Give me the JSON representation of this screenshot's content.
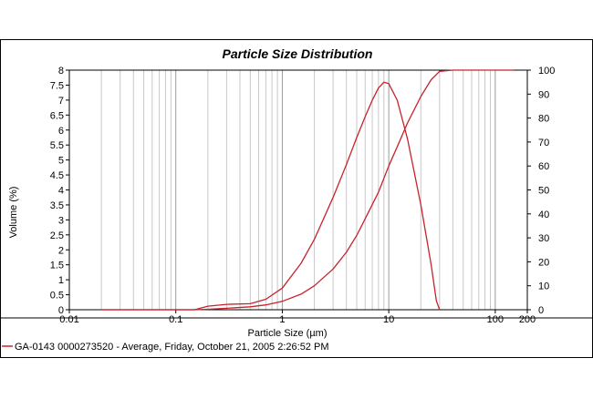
{
  "chart_data": {
    "type": "line",
    "title": "Particle Size Distribution",
    "xlabel": "Particle Size (µm)",
    "ylabel": "Volume (%)",
    "x_scale": "log",
    "xlim": [
      0.01,
      200
    ],
    "ylim": [
      0,
      8
    ],
    "y2lim": [
      0,
      100
    ],
    "x_tick_labels": [
      "0.01",
      "0.1",
      "1",
      "10",
      "100",
      "200"
    ],
    "y_tick_labels": [
      "0",
      "0.5",
      "1",
      "1.5",
      "2",
      "2.5",
      "3",
      "3.5",
      "4",
      "4.5",
      "5",
      "5.5",
      "6",
      "6.5",
      "7",
      "7.5",
      "8"
    ],
    "y2_tick_labels": [
      "0",
      "10",
      "20",
      "30",
      "40",
      "50",
      "60",
      "70",
      "80",
      "90",
      "100"
    ],
    "grid": true,
    "line_color": "#c8232c",
    "legend_position": "bottom",
    "legend_label": "GA-0143 0000273520 - Average, Friday, October 21, 2005 2:26:52 PM",
    "series": [
      {
        "axis": "left",
        "x": [
          0.02,
          0.15,
          0.2,
          0.3,
          0.5,
          0.7,
          1,
          1.5,
          2,
          3,
          4,
          5,
          6,
          7,
          8,
          9,
          10,
          12,
          15,
          20,
          25,
          28,
          30
        ],
        "y": [
          0,
          0,
          0.12,
          0.18,
          0.2,
          0.35,
          0.72,
          1.55,
          2.35,
          3.75,
          4.85,
          5.75,
          6.45,
          7.0,
          7.4,
          7.6,
          7.55,
          7.0,
          5.7,
          3.5,
          1.5,
          0.3,
          0
        ]
      },
      {
        "axis": "right",
        "x": [
          0.02,
          0.15,
          0.2,
          0.3,
          0.5,
          0.7,
          1,
          1.5,
          2,
          3,
          4,
          5,
          6,
          8,
          10,
          12,
          15,
          20,
          25,
          30,
          40,
          50,
          60,
          80,
          100,
          150
        ],
        "y": [
          0,
          0,
          0.2,
          0.6,
          1.2,
          2.0,
          3.5,
          6.5,
          10,
          17,
          24,
          31,
          38,
          49,
          60,
          68,
          78,
          89,
          96,
          99.5,
          100,
          100,
          100,
          100,
          100,
          100
        ]
      }
    ]
  }
}
